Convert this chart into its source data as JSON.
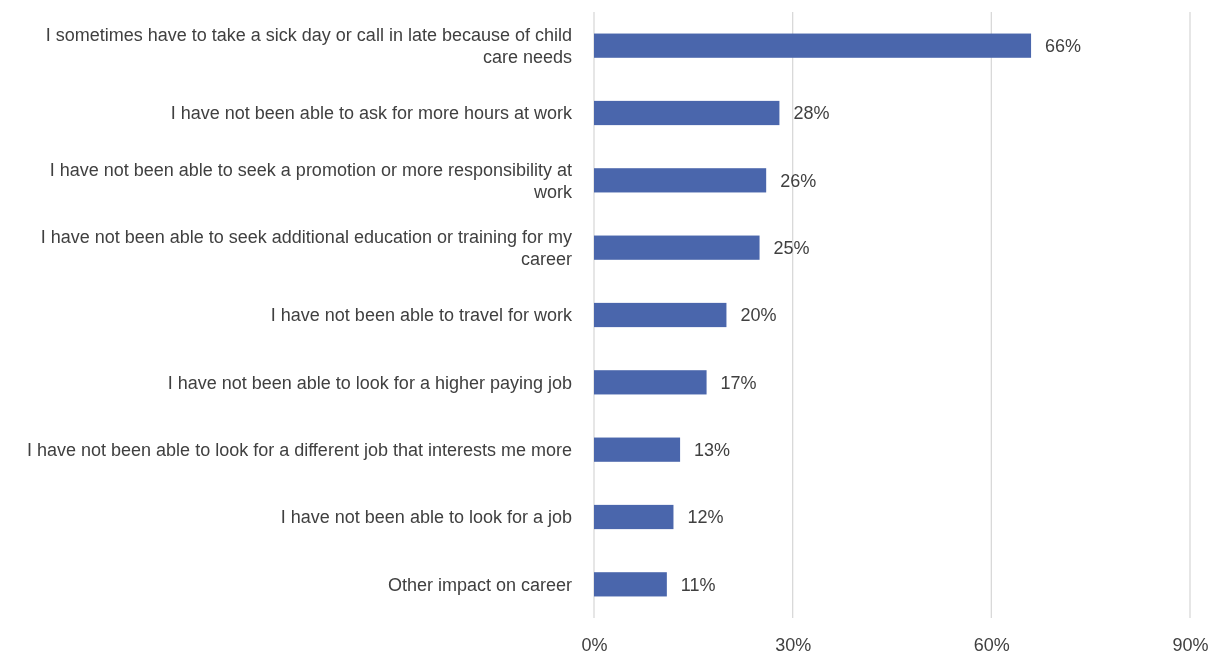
{
  "chart_data": {
    "type": "bar",
    "orientation": "horizontal",
    "categories": [
      "I sometimes have to take a sick day or call in late because of child care needs",
      "I have not been able to ask for more hours at work",
      "I have not been able to seek a promotion or more responsibility at work",
      "I have not been able to seek additional education or training for my career",
      "I have not been able to travel for work",
      "I have not been able to look for a higher paying job",
      "I have not been able to look for a different job that interests me more",
      "I have not been able to look for a job",
      "Other impact on career"
    ],
    "values": [
      66,
      28,
      26,
      25,
      20,
      17,
      13,
      12,
      11
    ],
    "value_labels": [
      "66%",
      "28%",
      "26%",
      "25%",
      "20%",
      "17%",
      "13%",
      "12%",
      "11%"
    ],
    "color": "#4a66ac",
    "xlim": [
      0,
      90
    ],
    "xticks": [
      {
        "value": 0,
        "label": "0%"
      },
      {
        "value": 30,
        "label": "30%"
      },
      {
        "value": 60,
        "label": "60%"
      },
      {
        "value": 90,
        "label": "90%"
      }
    ],
    "grid": "x"
  }
}
